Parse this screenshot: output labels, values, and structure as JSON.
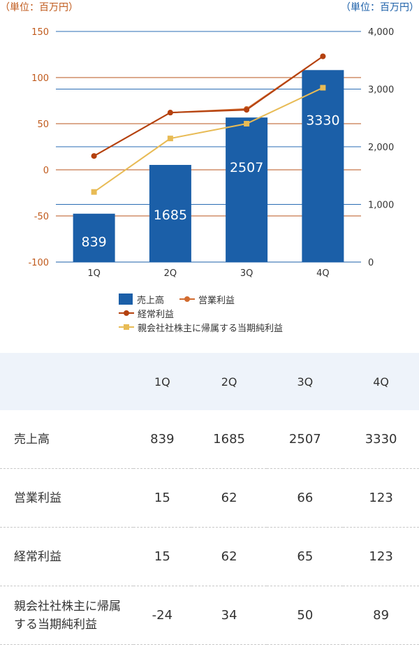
{
  "units": {
    "left": "（単位：百万円）",
    "right": "（単位：百万円）"
  },
  "chart_data": {
    "type": "bar",
    "categories": [
      "1Q",
      "2Q",
      "3Q",
      "4Q"
    ],
    "bar_series": {
      "name": "売上高",
      "values": [
        839,
        1685,
        2507,
        3330
      ],
      "axis": "right",
      "color": "#1b5fa8"
    },
    "line_series": [
      {
        "name": "営業利益",
        "values": [
          15,
          62,
          66,
          123
        ],
        "color": "#d26b2f",
        "marker": "circle",
        "axis": "left"
      },
      {
        "name": "経常利益",
        "values": [
          15,
          62,
          65,
          123
        ],
        "color": "#b4410f",
        "marker": "circle",
        "axis": "left"
      },
      {
        "name": "親会社社株主に帰属する当期純利益",
        "values": [
          -24,
          34,
          50,
          89
        ],
        "color": "#e8bb55",
        "marker": "square",
        "axis": "left"
      }
    ],
    "left_axis": {
      "ylim": [
        -100,
        150
      ],
      "ticks": [
        "150",
        "100",
        "50",
        "0",
        "-50",
        "-100"
      ],
      "color": "#c05a1c"
    },
    "right_axis": {
      "ylim": [
        0,
        4000
      ],
      "ticks": [
        "4,000",
        "3,000",
        "2,000",
        "1,000",
        "0"
      ],
      "color": "#1b5fa8"
    },
    "grid": true
  },
  "legend": {
    "sales": "売上高",
    "operating": "営業利益",
    "ordinary": "経常利益",
    "net": "親会社社株主に帰属する当期純利益"
  },
  "table": {
    "headers": [
      "1Q",
      "2Q",
      "3Q",
      "4Q"
    ],
    "rows": [
      {
        "label": "売上高",
        "values": [
          "839",
          "1685",
          "2507",
          "3330"
        ]
      },
      {
        "label": "営業利益",
        "values": [
          "15",
          "62",
          "66",
          "123"
        ]
      },
      {
        "label": "経常利益",
        "values": [
          "15",
          "62",
          "65",
          "123"
        ]
      },
      {
        "label_line1": "親会社社株主に帰属",
        "label_line2": "する当期純利益",
        "values": [
          "-24",
          "34",
          "50",
          "89"
        ]
      }
    ]
  }
}
